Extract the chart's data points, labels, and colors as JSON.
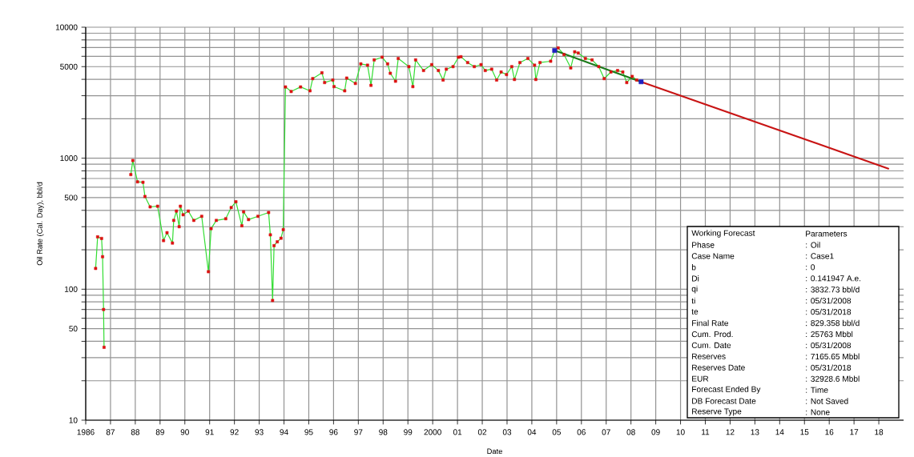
{
  "chart_data": {
    "type": "line",
    "xlabel": "Date",
    "ylabel": "Oil Rate (Cal. Day), bbl/d",
    "log": "y",
    "grid": true,
    "xlim": [
      1986,
      2019
    ],
    "ylim": [
      10,
      10000
    ],
    "xticks": [
      1986,
      {
        "value": 1987,
        "label": "87"
      },
      {
        "value": 1988,
        "label": "88"
      },
      {
        "value": 1989,
        "label": "89"
      },
      {
        "value": 1990,
        "label": "90"
      },
      {
        "value": 1991,
        "label": "91"
      },
      {
        "value": 1992,
        "label": "92"
      },
      {
        "value": 1993,
        "label": "93"
      },
      {
        "value": 1994,
        "label": "94"
      },
      {
        "value": 1995,
        "label": "95"
      },
      {
        "value": 1996,
        "label": "96"
      },
      {
        "value": 1997,
        "label": "97"
      },
      {
        "value": 1998,
        "label": "98"
      },
      {
        "value": 1999,
        "label": "99"
      },
      2000,
      {
        "value": 2001,
        "label": "01"
      },
      {
        "value": 2002,
        "label": "02"
      },
      {
        "value": 2003,
        "label": "03"
      },
      {
        "value": 2004,
        "label": "04"
      },
      {
        "value": 2005,
        "label": "05"
      },
      {
        "value": 2006,
        "label": "06"
      },
      {
        "value": 2007,
        "label": "07"
      },
      {
        "value": 2008,
        "label": "08"
      },
      {
        "value": 2009,
        "label": "09"
      },
      {
        "value": 2010,
        "label": "10"
      },
      {
        "value": 2011,
        "label": "11"
      },
      {
        "value": 2012,
        "label": "12"
      },
      {
        "value": 2013,
        "label": "13"
      },
      {
        "value": 2014,
        "label": "14"
      },
      {
        "value": 2015,
        "label": "15"
      },
      {
        "value": 2016,
        "label": "16"
      },
      {
        "value": 2017,
        "label": "17"
      },
      {
        "value": 2018,
        "label": "18"
      }
    ],
    "yticks": [
      10,
      {
        "value": 20,
        "label": null
      },
      {
        "value": 30,
        "label": null
      },
      {
        "value": 40,
        "label": null
      },
      50,
      {
        "value": 60,
        "label": null
      },
      {
        "value": 70,
        "label": null
      },
      {
        "value": 80,
        "label": null
      },
      {
        "value": 90,
        "label": null
      },
      100,
      {
        "value": 200,
        "label": null
      },
      {
        "value": 300,
        "label": null
      },
      {
        "value": 400,
        "label": null
      },
      500,
      {
        "value": 600,
        "label": null
      },
      {
        "value": 700,
        "label": null
      },
      {
        "value": 800,
        "label": null
      },
      {
        "value": 900,
        "label": null
      },
      1000,
      {
        "value": 2000,
        "label": null
      },
      {
        "value": 3000,
        "label": null
      },
      {
        "value": 4000,
        "label": null
      },
      5000,
      {
        "value": 6000,
        "label": null
      },
      {
        "value": 7000,
        "label": null
      },
      {
        "value": 8000,
        "label": null
      },
      {
        "value": 9000,
        "label": null
      },
      10000
    ],
    "series": [
      {
        "color": "#33dd33",
        "marker": "square",
        "colors": [
          "#dd1111",
          "#dd1111",
          "#dd1111",
          "#dd1111",
          "#dd1111",
          "#dd1111",
          null,
          "#dd1111",
          "#dd1111",
          "#dd1111",
          "#dd1111",
          "#dd1111",
          "#dd1111",
          "#dd1111",
          "#dd1111",
          "#dd1111",
          "#dd1111",
          "#dd1111",
          "#dd1111",
          "#dd1111",
          "#dd1111",
          "#dd1111",
          "#dd1111",
          "#dd1111",
          "#dd1111",
          "#dd1111",
          "#dd1111",
          "#dd1111",
          "#dd1111",
          "#dd1111",
          "#dd1111",
          "#dd1111",
          "#dd1111",
          "#dd1111",
          "#dd1111",
          "#dd1111",
          "#dd1111",
          "#dd1111",
          "#dd1111",
          "#dd1111",
          "#dd1111",
          "#dd1111",
          "#dd1111",
          "#dd1111",
          "#dd1111",
          "#dd1111",
          "#dd1111",
          "#dd1111",
          "#dd1111",
          "#dd1111",
          "#dd1111",
          "#dd1111",
          "#dd1111",
          "#dd1111",
          "#dd1111",
          "#dd1111",
          "#dd1111",
          "#dd1111",
          "#dd1111",
          "#dd1111",
          "#dd1111",
          "#dd1111",
          "#dd1111",
          "#dd1111",
          "#dd1111",
          "#dd1111",
          "#dd1111",
          "#dd1111",
          "#dd1111",
          "#dd1111",
          "#dd1111",
          "#dd1111",
          "#dd1111",
          "#dd1111",
          "#dd1111",
          "#dd1111",
          "#dd1111",
          "#dd1111",
          "#dd1111",
          "#dd1111",
          "#dd1111",
          "#dd1111",
          "#dd1111",
          "#dd1111",
          "#dd1111",
          "#dd1111",
          "#dd1111",
          "#dd1111",
          "#dd1111",
          "#dd1111",
          "#dd1111",
          "#dd1111",
          "#dd1111",
          "#dd1111",
          "#dd1111",
          "#dd1111",
          "#dd1111",
          "#dd1111",
          "#dd1111",
          "#dd1111",
          "#dd1111",
          "#dd1111",
          "#dd1111",
          "#dd1111",
          "#dd1111",
          "#dd1111"
        ],
        "x": [
          1986.4,
          1986.48,
          1986.64,
          1986.68,
          1986.72,
          1986.74,
          1987.3,
          1987.82,
          1987.9,
          1988.09,
          1988.31,
          1988.39,
          1988.6,
          1988.9,
          1989.14,
          1989.28,
          1989.5,
          1989.55,
          1989.66,
          1989.77,
          1989.82,
          1989.93,
          1990.14,
          1990.36,
          1990.68,
          1990.95,
          1991.06,
          1991.27,
          1991.65,
          1991.87,
          1992.06,
          1992.3,
          1992.37,
          1992.57,
          1992.95,
          1993.38,
          1993.45,
          1993.54,
          1993.6,
          1993.73,
          1993.88,
          1993.97,
          1994.06,
          1994.29,
          1994.67,
          1995.05,
          1995.16,
          1995.53,
          1995.64,
          1995.97,
          1996.02,
          1996.45,
          1996.53,
          1996.88,
          1997.1,
          1997.37,
          1997.51,
          1997.64,
          1997.96,
          1998.18,
          1998.29,
          1998.5,
          1998.61,
          1999.04,
          1999.2,
          1999.31,
          1999.63,
          1999.96,
          2000.23,
          2000.42,
          2000.55,
          2000.82,
          2001.04,
          2001.14,
          2001.41,
          2001.68,
          2001.95,
          2002.12,
          2002.38,
          2002.58,
          2002.76,
          2002.98,
          2003.19,
          2003.3,
          2003.52,
          2003.84,
          2004.11,
          2004.16,
          2004.33,
          2004.76,
          2004.92,
          2005.06,
          2005.3,
          2005.57,
          2005.73,
          2005.87,
          2006.16,
          2006.43,
          2006.7,
          2006.92,
          2007.19,
          2007.46,
          2007.67,
          2007.83,
          2008.05,
          2008.23
        ],
        "values": [
          144,
          251,
          244,
          177,
          70,
          36,
          null,
          750,
          960,
          660,
          655,
          510,
          425,
          430,
          235,
          270,
          225,
          335,
          395,
          300,
          430,
          370,
          395,
          335,
          360,
          136,
          290,
          335,
          345,
          420,
          465,
          305,
          390,
          340,
          360,
          385,
          260,
          82,
          215,
          230,
          245,
          285,
          3500,
          3230,
          3500,
          3270,
          4050,
          4490,
          3780,
          3950,
          3520,
          3270,
          4090,
          3720,
          5250,
          5130,
          3600,
          5630,
          5900,
          5250,
          4450,
          3870,
          5770,
          5000,
          3520,
          5630,
          4670,
          5180,
          4670,
          3950,
          4780,
          5000,
          5900,
          5950,
          5370,
          5000,
          5180,
          4670,
          4780,
          3950,
          4550,
          4350,
          5000,
          3990,
          5370,
          5770,
          5130,
          3990,
          5370,
          5500,
          6640,
          6950,
          6180,
          4890,
          6490,
          6350,
          5770,
          5630,
          5000,
          4050,
          4550,
          4670,
          4550,
          3780,
          4210,
          3950
        ]
      },
      {
        "color": "#1a7a1a",
        "marker": "none",
        "x": [
          2004.92,
          2008.41
        ],
        "values": [
          6640,
          3833
        ]
      },
      {
        "color": "#c81414",
        "marker": "none",
        "x": [
          2008.41,
          2018.41
        ],
        "values": [
          3832.73,
          829.358
        ]
      },
      {
        "type": "scatter",
        "color": "#2020c0",
        "marker": "square",
        "x": [
          2004.92,
          2008.41
        ],
        "values": [
          6640,
          3833
        ]
      }
    ],
    "annotations": [
      "Working Forecast",
      "Parameters",
      "Phase",
      ": Oil",
      "Case Name",
      ": Case1",
      "b",
      ": 0",
      "Di",
      ": 0.141947 A.e.",
      "qi",
      ": 3832.73 bbl/d",
      "ti",
      ": 05/31/2008",
      "te",
      ": 05/31/2018",
      "Final Rate",
      ": 829.358 bbl/d",
      "Cum. Prod.",
      ": 25763 Mbbl",
      "Cum. Date",
      ": 05/31/2008",
      "Reserves",
      ": 7165.65 Mbbl",
      "Reserves Date",
      ": 05/31/2018",
      "EUR",
      ": 32928.6 Mbbl",
      "Forecast Ended By",
      ": Time",
      "DB Forecast Date",
      ": Not Saved",
      "Reserve Type",
      ": None"
    ]
  }
}
